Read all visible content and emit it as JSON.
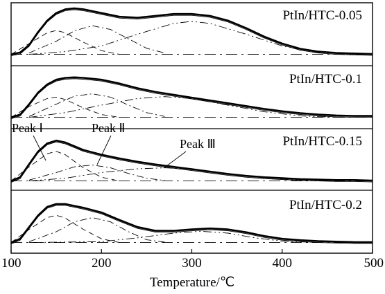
{
  "chart_data": {
    "type": "line",
    "xlabel": "Temperature/℃",
    "ylabel": "",
    "xlim": [
      100,
      500
    ],
    "xticks": [
      100,
      200,
      300,
      400,
      500
    ],
    "grid": false,
    "panels": [
      {
        "label": "PtIn/HTC-0.05",
        "series": [
          {
            "points": [
              [
                100,
                0.02
              ],
              [
                110,
                0.06
              ],
              [
                120,
                0.22
              ],
              [
                130,
                0.5
              ],
              [
                140,
                0.74
              ],
              [
                150,
                0.9
              ],
              [
                160,
                0.98
              ],
              [
                170,
                1.0
              ],
              [
                180,
                0.98
              ],
              [
                200,
                0.9
              ],
              [
                220,
                0.82
              ],
              [
                240,
                0.8
              ],
              [
                260,
                0.84
              ],
              [
                280,
                0.88
              ],
              [
                300,
                0.88
              ],
              [
                320,
                0.84
              ],
              [
                340,
                0.74
              ],
              [
                360,
                0.58
              ],
              [
                380,
                0.4
              ],
              [
                400,
                0.25
              ],
              [
                420,
                0.14
              ],
              [
                440,
                0.08
              ],
              [
                460,
                0.05
              ],
              [
                480,
                0.04
              ],
              [
                500,
                0.03
              ]
            ]
          },
          {
            "points": [
              [
                100,
                0.02
              ],
              [
                120,
                0.25
              ],
              [
                140,
                0.48
              ],
              [
                150,
                0.53
              ],
              [
                160,
                0.48
              ],
              [
                180,
                0.28
              ],
              [
                200,
                0.1
              ],
              [
                220,
                0.02
              ]
            ]
          },
          {
            "points": [
              [
                120,
                0.05
              ],
              [
                150,
                0.3
              ],
              [
                170,
                0.52
              ],
              [
                190,
                0.63
              ],
              [
                210,
                0.55
              ],
              [
                230,
                0.35
              ],
              [
                250,
                0.15
              ],
              [
                270,
                0.05
              ]
            ]
          },
          {
            "points": [
              [
                120,
                0.02
              ],
              [
                160,
                0.08
              ],
              [
                200,
                0.2
              ],
              [
                240,
                0.45
              ],
              [
                280,
                0.68
              ],
              [
                300,
                0.72
              ],
              [
                320,
                0.68
              ],
              [
                360,
                0.45
              ],
              [
                400,
                0.2
              ],
              [
                440,
                0.06
              ],
              [
                480,
                0.02
              ]
            ]
          },
          {
            "points": [
              [
                100,
                0.02
              ],
              [
                200,
                0.02
              ],
              [
                300,
                0.02
              ],
              [
                400,
                0.02
              ],
              [
                500,
                0.02
              ]
            ]
          }
        ]
      },
      {
        "label": "PtIn/HTC-0.1",
        "series": [
          {
            "points": [
              [
                100,
                0.02
              ],
              [
                110,
                0.08
              ],
              [
                120,
                0.3
              ],
              [
                130,
                0.55
              ],
              [
                140,
                0.72
              ],
              [
                150,
                0.82
              ],
              [
                160,
                0.86
              ],
              [
                170,
                0.87
              ],
              [
                180,
                0.86
              ],
              [
                200,
                0.82
              ],
              [
                220,
                0.74
              ],
              [
                240,
                0.64
              ],
              [
                260,
                0.56
              ],
              [
                280,
                0.5
              ],
              [
                300,
                0.44
              ],
              [
                320,
                0.38
              ],
              [
                340,
                0.32
              ],
              [
                360,
                0.26
              ],
              [
                380,
                0.2
              ],
              [
                400,
                0.15
              ],
              [
                420,
                0.11
              ],
              [
                440,
                0.08
              ],
              [
                460,
                0.06
              ],
              [
                480,
                0.05
              ],
              [
                500,
                0.05
              ]
            ]
          },
          {
            "points": [
              [
                100,
                0.02
              ],
              [
                120,
                0.25
              ],
              [
                140,
                0.42
              ],
              [
                150,
                0.45
              ],
              [
                160,
                0.4
              ],
              [
                180,
                0.22
              ],
              [
                200,
                0.08
              ],
              [
                220,
                0.02
              ]
            ]
          },
          {
            "points": [
              [
                120,
                0.04
              ],
              [
                150,
                0.3
              ],
              [
                170,
                0.47
              ],
              [
                190,
                0.52
              ],
              [
                210,
                0.45
              ],
              [
                230,
                0.28
              ],
              [
                250,
                0.12
              ],
              [
                270,
                0.04
              ]
            ]
          },
          {
            "points": [
              [
                120,
                0.02
              ],
              [
                160,
                0.12
              ],
              [
                200,
                0.28
              ],
              [
                240,
                0.42
              ],
              [
                270,
                0.46
              ],
              [
                300,
                0.42
              ],
              [
                340,
                0.28
              ],
              [
                380,
                0.14
              ],
              [
                420,
                0.05
              ],
              [
                460,
                0.02
              ]
            ]
          },
          {
            "points": [
              [
                100,
                0.02
              ],
              [
                200,
                0.02
              ],
              [
                300,
                0.02
              ],
              [
                400,
                0.02
              ],
              [
                500,
                0.02
              ]
            ]
          }
        ]
      },
      {
        "label": "PtIn/HTC-0.15",
        "annotations": [
          "Peak Ⅰ",
          "Peak Ⅱ",
          "Peak Ⅲ"
        ],
        "series": [
          {
            "points": [
              [
                100,
                0.02
              ],
              [
                110,
                0.1
              ],
              [
                120,
                0.38
              ],
              [
                130,
                0.65
              ],
              [
                140,
                0.82
              ],
              [
                150,
                0.88
              ],
              [
                160,
                0.84
              ],
              [
                170,
                0.76
              ],
              [
                180,
                0.68
              ],
              [
                200,
                0.58
              ],
              [
                220,
                0.5
              ],
              [
                240,
                0.43
              ],
              [
                260,
                0.37
              ],
              [
                280,
                0.32
              ],
              [
                300,
                0.27
              ],
              [
                320,
                0.22
              ],
              [
                340,
                0.17
              ],
              [
                360,
                0.13
              ],
              [
                380,
                0.1
              ],
              [
                400,
                0.08
              ],
              [
                420,
                0.06
              ],
              [
                440,
                0.05
              ],
              [
                460,
                0.04
              ],
              [
                480,
                0.04
              ],
              [
                500,
                0.03
              ]
            ]
          },
          {
            "points": [
              [
                100,
                0.02
              ],
              [
                120,
                0.32
              ],
              [
                140,
                0.6
              ],
              [
                150,
                0.65
              ],
              [
                160,
                0.58
              ],
              [
                180,
                0.3
              ],
              [
                200,
                0.1
              ],
              [
                220,
                0.02
              ]
            ]
          },
          {
            "points": [
              [
                120,
                0.04
              ],
              [
                150,
                0.2
              ],
              [
                170,
                0.32
              ],
              [
                190,
                0.36
              ],
              [
                210,
                0.3
              ],
              [
                230,
                0.18
              ],
              [
                250,
                0.08
              ],
              [
                270,
                0.03
              ]
            ]
          },
          {
            "points": [
              [
                120,
                0.02
              ],
              [
                160,
                0.08
              ],
              [
                200,
                0.2
              ],
              [
                240,
                0.28
              ],
              [
                270,
                0.3
              ],
              [
                300,
                0.27
              ],
              [
                340,
                0.18
              ],
              [
                380,
                0.09
              ],
              [
                420,
                0.04
              ],
              [
                460,
                0.02
              ]
            ]
          },
          {
            "points": [
              [
                100,
                0.02
              ],
              [
                200,
                0.02
              ],
              [
                300,
                0.02
              ],
              [
                400,
                0.02
              ],
              [
                500,
                0.02
              ]
            ]
          }
        ]
      },
      {
        "label": "PtIn/HTC-0.2",
        "series": [
          {
            "points": [
              [
                100,
                0.02
              ],
              [
                110,
                0.1
              ],
              [
                120,
                0.35
              ],
              [
                130,
                0.6
              ],
              [
                140,
                0.78
              ],
              [
                150,
                0.84
              ],
              [
                160,
                0.84
              ],
              [
                170,
                0.8
              ],
              [
                180,
                0.76
              ],
              [
                200,
                0.66
              ],
              [
                220,
                0.5
              ],
              [
                240,
                0.35
              ],
              [
                260,
                0.27
              ],
              [
                280,
                0.27
              ],
              [
                300,
                0.3
              ],
              [
                320,
                0.32
              ],
              [
                340,
                0.3
              ],
              [
                360,
                0.24
              ],
              [
                380,
                0.16
              ],
              [
                400,
                0.1
              ],
              [
                420,
                0.07
              ],
              [
                440,
                0.05
              ],
              [
                460,
                0.04
              ],
              [
                480,
                0.03
              ],
              [
                500,
                0.03
              ]
            ]
          },
          {
            "points": [
              [
                100,
                0.02
              ],
              [
                120,
                0.3
              ],
              [
                140,
                0.55
              ],
              [
                150,
                0.6
              ],
              [
                160,
                0.54
              ],
              [
                180,
                0.3
              ],
              [
                200,
                0.1
              ],
              [
                220,
                0.02
              ]
            ]
          },
          {
            "points": [
              [
                120,
                0.04
              ],
              [
                150,
                0.25
              ],
              [
                170,
                0.46
              ],
              [
                190,
                0.55
              ],
              [
                210,
                0.46
              ],
              [
                230,
                0.25
              ],
              [
                250,
                0.08
              ],
              [
                270,
                0.03
              ]
            ]
          },
          {
            "points": [
              [
                120,
                0.02
              ],
              [
                200,
                0.04
              ],
              [
                240,
                0.12
              ],
              [
                280,
                0.22
              ],
              [
                310,
                0.26
              ],
              [
                340,
                0.22
              ],
              [
                370,
                0.12
              ],
              [
                400,
                0.05
              ],
              [
                440,
                0.02
              ]
            ]
          },
          {
            "points": [
              [
                100,
                0.02
              ],
              [
                200,
                0.02
              ],
              [
                300,
                0.02
              ],
              [
                400,
                0.02
              ],
              [
                500,
                0.02
              ]
            ]
          }
        ]
      }
    ]
  }
}
